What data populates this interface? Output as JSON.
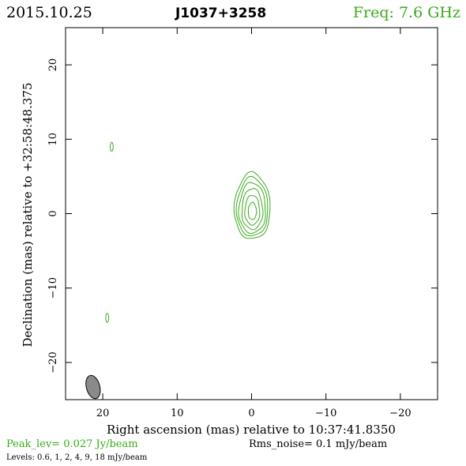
{
  "header": {
    "date": "2015.10.25",
    "source": "J1037+3258",
    "freq": "Freq:  7.6  GHz"
  },
  "footer": {
    "peak": "Peak_lev=   0.027  Jy/beam",
    "noise": "Rms_noise=    0.1  mJy/beam",
    "levels": "Levels: 0.6,     1,     2,     4,     9,    18  mJy/beam"
  },
  "colors": {
    "contour": "#3aaa1c",
    "beam": "#8a8a8a",
    "axes": "#000000"
  },
  "chart_data": {
    "type": "contour",
    "xlabel": "Right ascension (mas) relative to 10:37:41.8350",
    "ylabel": "Declination (mas) relative to +32:58:48.375",
    "xlim": [
      25,
      -25
    ],
    "ylim": [
      -25,
      25
    ],
    "xticks": [
      20,
      10,
      0,
      -10,
      -20
    ],
    "yticks": [
      20,
      10,
      0,
      -10,
      -20
    ],
    "xtick_labels": [
      "20",
      "10",
      "0",
      "−10",
      "−20"
    ],
    "ytick_labels": [
      "20",
      "10",
      "0",
      "−10",
      "−20"
    ],
    "contour_levels_mJy": [
      0.6,
      1,
      2,
      4,
      9,
      18
    ],
    "core": {
      "center": [
        -0.1,
        0.2
      ],
      "contours": [
        {
          "level": 0.6,
          "rx": 2.4,
          "ry_top": 5.3,
          "ry_bottom": 3.6
        },
        {
          "level": 1,
          "rx": 2.1,
          "ry_top": 4.7,
          "ry_bottom": 3.2
        },
        {
          "level": 2,
          "rx": 1.8,
          "ry_top": 4.0,
          "ry_bottom": 2.8
        },
        {
          "level": 4,
          "rx": 1.4,
          "ry_top": 3.2,
          "ry_bottom": 2.3
        },
        {
          "level": 9,
          "rx": 1.0,
          "ry_top": 2.3,
          "ry_bottom": 1.7
        },
        {
          "level": 18,
          "rx": 0.55,
          "ry_top": 1.3,
          "ry_bottom": 1.0
        }
      ]
    },
    "islands": [
      {
        "center": [
          18.8,
          9.0
        ],
        "rx": 0.2,
        "ry": 0.6
      },
      {
        "center": [
          19.4,
          -14.0
        ],
        "rx": 0.2,
        "ry": 0.6
      }
    ],
    "beam": {
      "center": [
        21.3,
        -23.3
      ],
      "major": 3.2,
      "minor": 1.8,
      "pa_deg": -15
    }
  }
}
